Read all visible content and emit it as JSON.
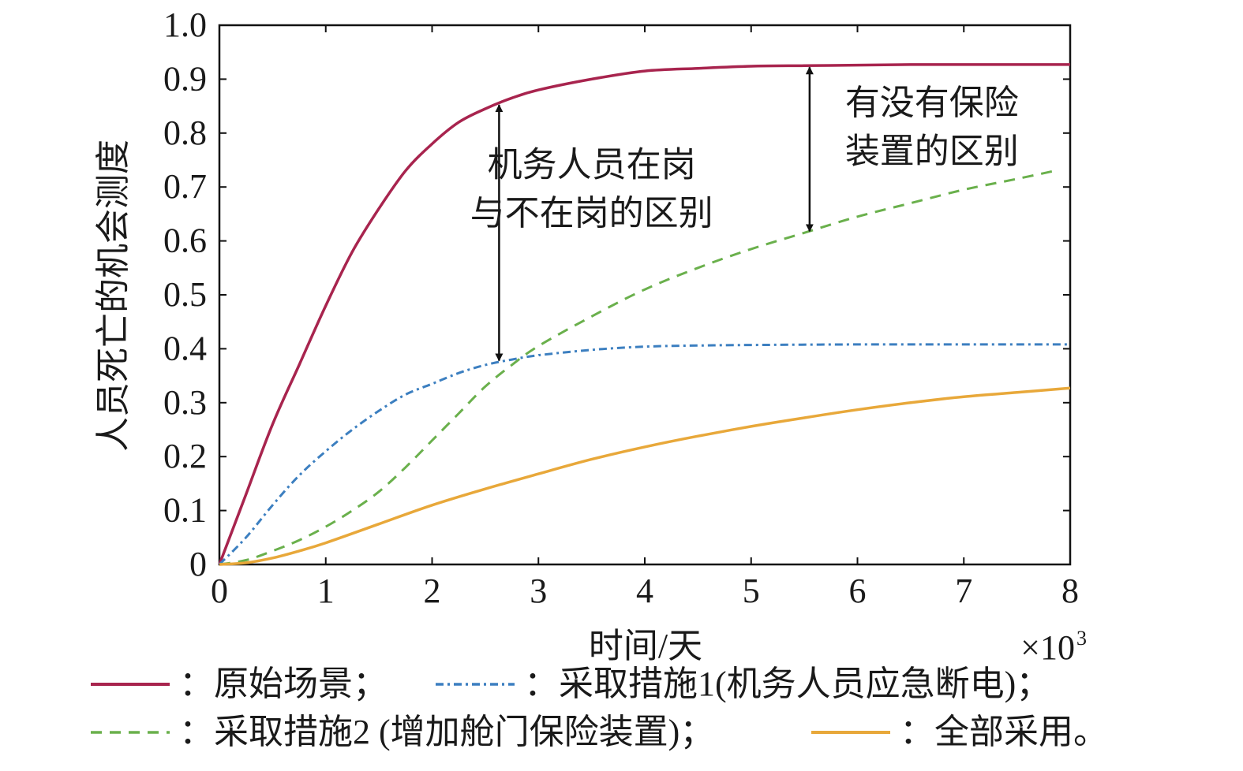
{
  "chart_data": {
    "type": "line",
    "title": "",
    "xlabel": "时间/天",
    "x_multiplier": "×10",
    "x_multiplier_exp": "3",
    "ylabel": "人员死亡的机会测度",
    "xlim": [
      0,
      8
    ],
    "ylim": [
      0,
      1.0
    ],
    "x_ticks": [
      "0",
      "1",
      "2",
      "3",
      "4",
      "5",
      "6",
      "7",
      "8"
    ],
    "y_ticks": [
      "0",
      "0.1",
      "0.2",
      "0.3",
      "0.4",
      "0.5",
      "0.6",
      "0.7",
      "0.8",
      "0.9",
      "1.0"
    ],
    "grid": false,
    "legend_position": "bottom",
    "series": [
      {
        "name": "原始场景",
        "legend_label": "：原始场景；",
        "color": "#a8244e",
        "style": "solid",
        "x": [
          0,
          0.25,
          0.5,
          0.75,
          1.0,
          1.25,
          1.5,
          1.75,
          2.0,
          2.25,
          2.5,
          2.75,
          3.0,
          3.5,
          4.0,
          4.5,
          5.0,
          5.5,
          6.0,
          6.5,
          7.0,
          7.5,
          8.0
        ],
        "y": [
          0,
          0.13,
          0.26,
          0.37,
          0.48,
          0.58,
          0.66,
          0.73,
          0.78,
          0.82,
          0.845,
          0.865,
          0.88,
          0.9,
          0.915,
          0.92,
          0.924,
          0.925,
          0.926,
          0.927,
          0.927,
          0.927,
          0.927
        ]
      },
      {
        "name": "采取措施1(机务人员应急断电)",
        "legend_label": "：采取措施1(机务人员应急断电)；",
        "color": "#3c7fc0",
        "style": "dashdot",
        "x": [
          0,
          0.25,
          0.5,
          0.75,
          1.0,
          1.25,
          1.5,
          1.75,
          2.0,
          2.25,
          2.5,
          2.75,
          3.0,
          3.5,
          4.0,
          4.5,
          5.0,
          6.0,
          7.0,
          8.0
        ],
        "y": [
          0,
          0.05,
          0.11,
          0.165,
          0.21,
          0.25,
          0.285,
          0.315,
          0.335,
          0.355,
          0.37,
          0.38,
          0.388,
          0.398,
          0.404,
          0.406,
          0.407,
          0.408,
          0.408,
          0.408
        ]
      },
      {
        "name": "采取措施2 (增加舱门保险装置)",
        "legend_label": "：采取措施2 (增加舱门保险装置)；",
        "color": "#6ab04c",
        "style": "dashed",
        "x": [
          0,
          0.25,
          0.5,
          0.75,
          1.0,
          1.25,
          1.5,
          1.75,
          2.0,
          2.25,
          2.5,
          2.75,
          3.0,
          3.5,
          4.0,
          4.5,
          5.0,
          5.5,
          6.0,
          6.5,
          7.0,
          7.5,
          7.9
        ],
        "y": [
          0,
          0.008,
          0.025,
          0.045,
          0.07,
          0.1,
          0.135,
          0.18,
          0.23,
          0.28,
          0.33,
          0.37,
          0.405,
          0.46,
          0.51,
          0.55,
          0.585,
          0.615,
          0.645,
          0.67,
          0.695,
          0.715,
          0.732
        ]
      },
      {
        "name": "全部采用",
        "legend_label": "：全部采用。",
        "color": "#e8a83a",
        "style": "solid",
        "x": [
          0,
          0.25,
          0.5,
          0.75,
          1.0,
          1.5,
          2.0,
          2.5,
          3.0,
          3.5,
          4.0,
          4.5,
          5.0,
          5.5,
          6.0,
          6.5,
          7.0,
          7.5,
          8.0
        ],
        "y": [
          0,
          0.003,
          0.012,
          0.025,
          0.04,
          0.075,
          0.11,
          0.14,
          0.168,
          0.195,
          0.218,
          0.238,
          0.256,
          0.272,
          0.287,
          0.3,
          0.311,
          0.319,
          0.327
        ]
      }
    ],
    "annotations": [
      {
        "lines": [
          "机务人员在岗",
          "与不在岗的区别"
        ],
        "arrow_x": 2.63,
        "arrow_y": [
          0.375,
          0.855
        ],
        "text_x": 3.5,
        "text_y": [
          0.72,
          0.63
        ],
        "anchor": "middle"
      },
      {
        "lines": [
          "有没有保险",
          "装置的区别"
        ],
        "arrow_x": 5.55,
        "arrow_y": [
          0.615,
          0.925
        ],
        "text_x": 6.7,
        "text_y": [
          0.835,
          0.745
        ],
        "anchor": "middle"
      }
    ]
  }
}
